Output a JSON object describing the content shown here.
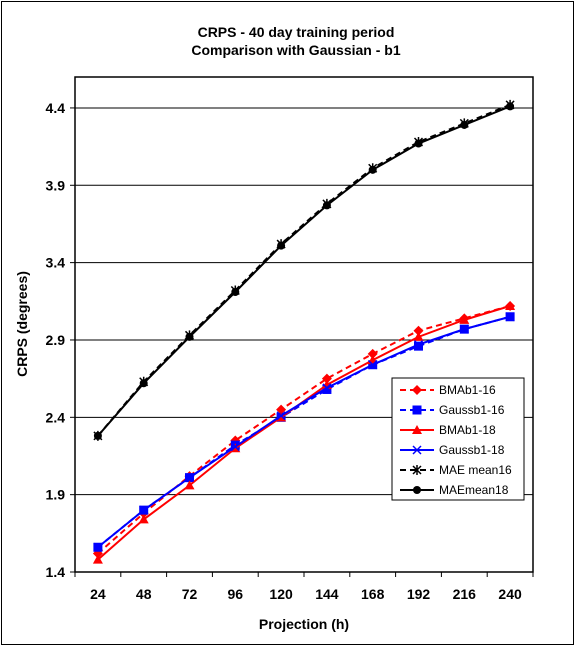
{
  "chart_data": {
    "type": "line",
    "title": "CRPS - 40 day training period",
    "subtitle": "Comparison with Gaussian - b1",
    "xlabel": "Projection (h)",
    "ylabel": "CRPS (degrees)",
    "categories": [
      "24",
      "48",
      "72",
      "96",
      "120",
      "144",
      "168",
      "192",
      "216",
      "240"
    ],
    "x": [
      24,
      48,
      72,
      96,
      120,
      144,
      168,
      192,
      216,
      240
    ],
    "ylim": [
      1.4,
      4.6
    ],
    "yticks": [
      "1.4",
      "1.9",
      "2.4",
      "2.9",
      "3.4",
      "3.9",
      "4.4"
    ],
    "grid": true,
    "legend_position": "bottom-right",
    "series": [
      {
        "name": "BMAb1-16",
        "color": "#ff0000",
        "dash": true,
        "marker": "diamond",
        "values": [
          1.52,
          1.78,
          2.02,
          2.25,
          2.45,
          2.65,
          2.81,
          2.96,
          3.04,
          3.12
        ]
      },
      {
        "name": "Gaussb1-16",
        "color": "#0000ff",
        "dash": true,
        "marker": "square",
        "values": [
          1.56,
          1.8,
          2.01,
          2.22,
          2.4,
          2.58,
          2.74,
          2.86,
          2.97,
          3.05
        ]
      },
      {
        "name": "BMAb1-18",
        "color": "#ff0000",
        "dash": false,
        "marker": "triangle",
        "values": [
          1.48,
          1.74,
          1.96,
          2.2,
          2.4,
          2.61,
          2.77,
          2.92,
          3.03,
          3.12
        ]
      },
      {
        "name": "Gaussb1-18",
        "color": "#0000ff",
        "dash": false,
        "marker": "x",
        "values": [
          1.56,
          1.8,
          2.01,
          2.21,
          2.41,
          2.59,
          2.74,
          2.87,
          2.97,
          3.05
        ]
      },
      {
        "name": "MAE mean16",
        "color": "#000000",
        "dash": true,
        "marker": "star",
        "values": [
          2.28,
          2.63,
          2.93,
          3.22,
          3.52,
          3.78,
          4.01,
          4.18,
          4.3,
          4.42
        ]
      },
      {
        "name": "MAEmean18",
        "color": "#000000",
        "dash": false,
        "marker": "dot",
        "values": [
          2.28,
          2.62,
          2.92,
          3.21,
          3.51,
          3.77,
          4.0,
          4.17,
          4.29,
          4.41
        ]
      }
    ]
  }
}
